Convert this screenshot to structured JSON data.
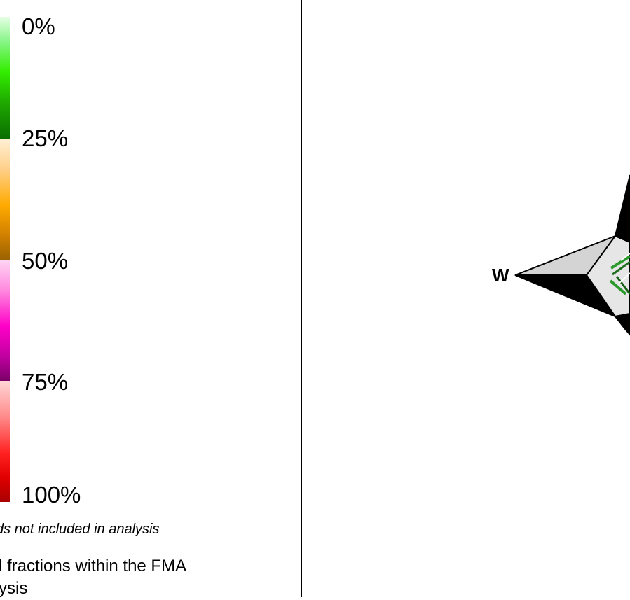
{
  "legend": {
    "ticks": [
      "0%",
      "25%",
      "50%",
      "75%",
      "100%"
    ],
    "ramp_colors": [
      "#33ee00",
      "#ffaa00",
      "#ff00c8",
      "#ff2020"
    ],
    "note_italic": "ds not included in analysis",
    "note_line1": "l fractions within the FMA",
    "note_line2": "ysis"
  },
  "compass": {
    "west_label": "W"
  }
}
